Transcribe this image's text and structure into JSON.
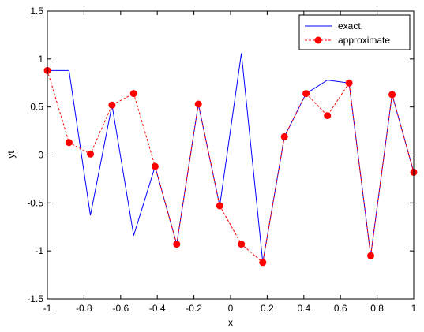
{
  "chart_data": {
    "type": "line",
    "xlabel": "x",
    "ylabel": "yt",
    "xlim": [
      -1,
      1
    ],
    "ylim": [
      -1.5,
      1.5
    ],
    "xticks": [
      -1,
      -0.8,
      -0.6,
      -0.4,
      -0.2,
      0,
      0.2,
      0.4,
      0.6,
      0.8,
      1
    ],
    "xtick_labels": [
      "-1",
      "-0.8",
      "-0.6",
      "-0.4",
      "-0.2",
      "0",
      "0.2",
      "0.4",
      "0.6",
      "0.8",
      "1"
    ],
    "yticks": [
      -1.5,
      -1,
      -0.5,
      0,
      0.5,
      1,
      1.5
    ],
    "ytick_labels": [
      "-1.5",
      "-1",
      "-0.5",
      "0",
      "0.5",
      "1",
      "1.5"
    ],
    "grid": false,
    "legend_position": "top-right",
    "series": [
      {
        "name": "exact.",
        "color": "#0000ff",
        "style": "solid",
        "marker": "none",
        "x": [
          -1.0,
          -0.882,
          -0.765,
          -0.647,
          -0.529,
          -0.412,
          -0.294,
          -0.176,
          -0.059,
          0.059,
          0.176,
          0.294,
          0.412,
          0.529,
          0.647,
          0.765,
          0.882,
          1.0
        ],
        "y": [
          0.88,
          0.88,
          -0.63,
          0.52,
          -0.84,
          -0.12,
          -0.93,
          0.53,
          -0.53,
          1.06,
          -1.12,
          0.19,
          0.64,
          0.78,
          0.75,
          -1.05,
          0.63,
          -0.18
        ]
      },
      {
        "name": "approximate",
        "color": "#ff0000",
        "style": "dashed",
        "marker": "circle",
        "x": [
          -1.0,
          -0.882,
          -0.765,
          -0.647,
          -0.529,
          -0.412,
          -0.294,
          -0.176,
          -0.059,
          0.059,
          0.176,
          0.294,
          0.412,
          0.529,
          0.647,
          0.765,
          0.882,
          1.0
        ],
        "y": [
          0.88,
          0.13,
          0.01,
          0.52,
          0.64,
          -0.12,
          -0.93,
          0.53,
          -0.53,
          -0.93,
          -1.12,
          0.19,
          0.64,
          0.41,
          0.75,
          -1.05,
          0.63,
          -0.18
        ]
      }
    ]
  }
}
